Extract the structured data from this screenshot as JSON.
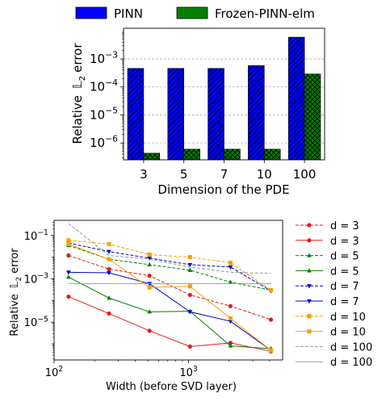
{
  "chart_data": [
    {
      "type": "bar",
      "xlabel": "Dimension of the PDE",
      "ylabel": "Relative  ℝ₂ error",
      "ylabel_prefix": "Relative",
      "ylabel_norm": "𝕃",
      "ylabel_sub": "2",
      "ylabel_suffix": "error",
      "yscale": "log",
      "ylim": [
        2.5e-07,
        0.0125
      ],
      "yticks": [
        {
          "value": 1e-06,
          "base": "10",
          "exp": "−6"
        },
        {
          "value": 1e-05,
          "base": "10",
          "exp": "−5"
        },
        {
          "value": 0.0001,
          "base": "10",
          "exp": "−4"
        },
        {
          "value": 0.001,
          "base": "10",
          "exp": "−3"
        }
      ],
      "grid": "y-major dashed",
      "legend_position": "top, above plot, 2 columns",
      "categories": [
        "3",
        "5",
        "7",
        "10",
        "100"
      ],
      "series": [
        {
          "name": "PINN",
          "color": "#0000ff",
          "hatch": "diagonal",
          "values": [
            0.00046,
            0.00046,
            0.00046,
            0.00058,
            0.006
          ]
        },
        {
          "name": "Frozen-PINN-elm",
          "color": "#008000",
          "hatch": "crosshatch",
          "values": [
            4.3e-07,
            6e-07,
            6e-07,
            6e-07,
            0.00029
          ]
        }
      ]
    },
    {
      "type": "line",
      "xlabel": "Width (before SVD layer)",
      "ylabel_prefix": "Relative",
      "ylabel_norm": "𝕃",
      "ylabel_sub": "2",
      "ylabel_suffix": "error",
      "xscale": "log",
      "yscale": "log",
      "xlim": [
        100,
        5000
      ],
      "ylim": [
        1.8e-07,
        0.5
      ],
      "xticks": [
        {
          "value": 100,
          "base": "10",
          "exp": "2"
        },
        {
          "value": 1000,
          "base": "10",
          "exp": "3"
        }
      ],
      "yticks": [
        {
          "value": 1e-05,
          "base": "10",
          "exp": "−5"
        },
        {
          "value": 0.001,
          "base": "10",
          "exp": "−3"
        },
        {
          "value": 0.1,
          "base": "10",
          "exp": "−1"
        }
      ],
      "legend_position": "right, outside plot",
      "series": [
        {
          "name": "d = 3",
          "color": "#e31a1c",
          "dash": true,
          "marker": "circle",
          "x": [
            128,
            256,
            512,
            1024,
            2048,
            4096
          ],
          "y": [
            0.012,
            0.0028,
            0.0014,
            0.00018,
            5.5e-05,
            1.3e-05
          ]
        },
        {
          "name": "d = 3",
          "color": "#e31a1c",
          "dash": false,
          "marker": "circle",
          "x": [
            128,
            256,
            512,
            1024,
            2048,
            4096
          ],
          "y": [
            0.00015,
            2.5e-05,
            4e-06,
            7.5e-07,
            1.1e-06,
            4.5e-07
          ]
        },
        {
          "name": "d = 5",
          "color": "#008000",
          "dash": true,
          "marker": "triangle-up",
          "x": [
            128,
            256,
            512,
            1024,
            2048,
            4096
          ],
          "y": [
            0.035,
            0.008,
            0.0045,
            0.0025,
            0.0007,
            0.0003
          ]
        },
        {
          "name": "d = 5",
          "color": "#008000",
          "dash": false,
          "marker": "triangle-up",
          "x": [
            128,
            256,
            512,
            1024,
            2048,
            4096
          ],
          "y": [
            0.0012,
            0.00013,
            3e-05,
            3.2e-05,
            8e-07,
            6e-07
          ]
        },
        {
          "name": "d = 7",
          "color": "#0000cc",
          "dash": true,
          "marker": "triangle-down",
          "x": [
            128,
            256,
            512,
            1024,
            2048,
            4096
          ],
          "y": [
            0.045,
            0.018,
            0.009,
            0.0045,
            0.0035,
            0.00028
          ]
        },
        {
          "name": "d = 7",
          "color": "#0000cc",
          "dash": false,
          "marker": "triangle-down",
          "x": [
            128,
            256,
            512,
            1024,
            2048,
            4096
          ],
          "y": [
            0.002,
            0.0019,
            0.0006,
            3e-05,
            1.1e-05,
            5e-07
          ]
        },
        {
          "name": "d = 10",
          "color": "#f5a300",
          "dash": true,
          "marker": "square",
          "x": [
            128,
            256,
            512,
            1024,
            2048,
            4096
          ],
          "y": [
            0.06,
            0.04,
            0.013,
            0.01,
            0.0055,
            0.0003
          ]
        },
        {
          "name": "d = 10",
          "color": "#f5a300",
          "dash": false,
          "marker": "square",
          "x": [
            128,
            256,
            512,
            1024,
            2048,
            4096
          ],
          "y": [
            0.04,
            0.008,
            0.0004,
            0.00045,
            1.5e-05,
            5e-07
          ]
        },
        {
          "name": "d = 100",
          "color": "#999999",
          "dash": true,
          "marker": "none",
          "x": [
            128,
            256,
            512,
            1024,
            2048,
            4096
          ],
          "y": [
            0.35,
            0.012,
            0.008,
            0.0035,
            0.002,
            0.0018
          ]
        },
        {
          "name": "d = 100",
          "color": "#999999",
          "dash": false,
          "marker": "none",
          "x": [
            128,
            4096
          ],
          "y": [
            0.0006,
            0.0006
          ]
        }
      ]
    }
  ]
}
